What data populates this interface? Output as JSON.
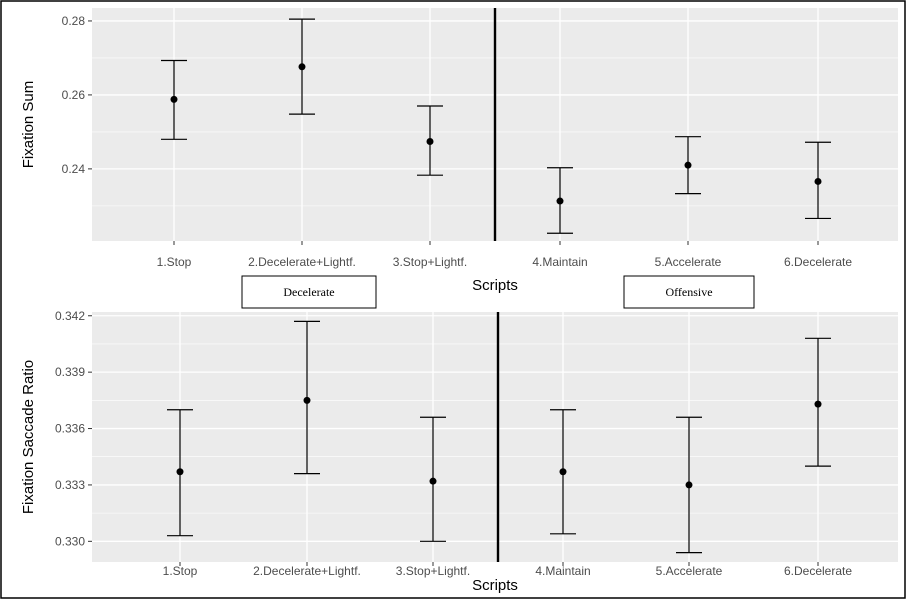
{
  "chart_data": [
    {
      "type": "scatter",
      "subtype": "point-with-errorbars",
      "title": "",
      "xlabel": "Scripts",
      "ylabel": "Fixation Sum",
      "categories": [
        "1.Stop",
        "2.Decelerate+Lightf.",
        "3.Stop+Lightf.",
        "4.Maintain",
        "5.Accelerate",
        "6.Decelerate"
      ],
      "series": [
        {
          "values": [
            0.2588,
            0.2676,
            0.2474,
            0.2313,
            0.241,
            0.2366
          ],
          "lower": [
            0.248,
            0.2548,
            0.2383,
            0.2226,
            0.2333,
            0.2266
          ],
          "upper": [
            0.2693,
            0.2805,
            0.257,
            0.2403,
            0.2487,
            0.2472
          ]
        }
      ],
      "yticks": [
        0.24,
        0.26,
        0.28
      ],
      "ylim": [
        0.2205,
        0.2835
      ],
      "grid": true,
      "divider_after_category": 3
    },
    {
      "type": "scatter",
      "subtype": "point-with-errorbars",
      "title": "",
      "xlabel": "Scripts",
      "ylabel": "Fixation Saccade Ratio",
      "categories": [
        "1.Stop",
        "2.Decelerate+Lightf.",
        "3.Stop+Lightf.",
        "4.Maintain",
        "5.Accelerate",
        "6.Decelerate"
      ],
      "series": [
        {
          "values": [
            0.3337,
            0.3375,
            0.3332,
            0.3337,
            0.333,
            0.3373
          ],
          "lower": [
            0.3303,
            0.3336,
            0.33,
            0.3304,
            0.3294,
            0.334
          ],
          "upper": [
            0.337,
            0.3417,
            0.3366,
            0.337,
            0.3366,
            0.3408
          ]
        }
      ],
      "yticks": [
        0.33,
        0.333,
        0.336,
        0.339,
        0.342
      ],
      "ytick_labels": [
        "0.330",
        "0.333",
        "0.336",
        "0.339",
        "0.342"
      ],
      "ylim": [
        0.3289,
        0.3422
      ],
      "grid": true,
      "divider_after_category": 3
    }
  ],
  "group_labels": [
    "Decelerate",
    "Offensive"
  ]
}
